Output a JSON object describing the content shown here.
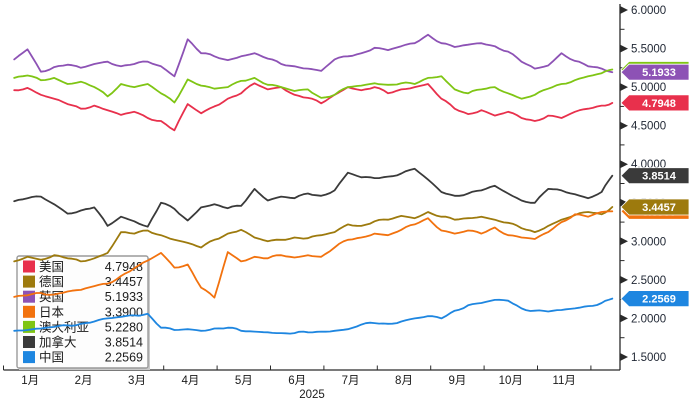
{
  "chart": {
    "year_label": "2025",
    "background": "#ffffff",
    "axis_color": "#2a2a2a",
    "y_axis": {
      "side": "right",
      "min": 1.5,
      "max": 6.0,
      "major_step": 0.5,
      "minor_step": 0.25,
      "tick_labels": [
        "6.0000",
        "5.5000",
        "5.0000",
        "4.5000",
        "4.0000",
        "3.5000",
        "3.0000",
        "2.5000",
        "2.0000",
        "1.5000"
      ]
    },
    "x_axis": {
      "month_labels": [
        "1月",
        "2月",
        "3月",
        "4月",
        "5月",
        "6月",
        "7月",
        "8月",
        "9月",
        "10月",
        "11月"
      ]
    },
    "legend_position": "bottom-left"
  },
  "chart_data": {
    "type": "line",
    "title": "",
    "xlabel": "2025",
    "ylabel": "",
    "ylim": [
      1.5,
      6.0
    ],
    "grid": false,
    "year_label": "2025",
    "x_unit": "month-of-2025 (decimal)",
    "x": [
      1.2,
      1.45,
      1.7,
      1.95,
      2.2,
      2.45,
      2.7,
      2.95,
      3.2,
      3.45,
      3.7,
      3.95,
      4.2,
      4.45,
      4.7,
      4.95,
      5.2,
      5.45,
      5.7,
      5.95,
      6.2,
      6.45,
      6.7,
      6.95,
      7.2,
      7.45,
      7.7,
      7.95,
      8.2,
      8.45,
      8.7,
      8.95,
      9.2,
      9.45,
      9.7,
      9.95,
      10.2,
      10.45,
      10.7,
      10.95,
      11.2,
      11.45,
      11.7,
      11.95,
      12.2,
      12.4
    ],
    "badge_draw_order": [
      4,
      2,
      3,
      1,
      0,
      5,
      6
    ],
    "series": [
      {
        "id": "us",
        "name": "美国",
        "color": "#e8304c",
        "last_value": "4.7948",
        "values": [
          4.96,
          4.99,
          4.9,
          4.85,
          4.78,
          4.72,
          4.76,
          4.7,
          4.64,
          4.68,
          4.6,
          4.56,
          4.44,
          4.78,
          4.66,
          4.75,
          4.85,
          4.92,
          5.05,
          4.97,
          5.0,
          4.9,
          4.86,
          4.79,
          4.9,
          5.0,
          4.96,
          5.0,
          4.92,
          4.97,
          5.0,
          5.04,
          4.85,
          4.72,
          4.65,
          4.7,
          4.63,
          4.68,
          4.6,
          4.56,
          4.63,
          4.6,
          4.68,
          4.72,
          4.76,
          4.7948
        ]
      },
      {
        "id": "germany",
        "name": "德国",
        "color": "#9d7a0d",
        "last_value": "3.4457",
        "values": [
          2.74,
          2.8,
          2.76,
          2.82,
          2.78,
          2.74,
          2.78,
          2.85,
          3.12,
          3.1,
          3.14,
          3.08,
          3.02,
          2.98,
          2.92,
          3.02,
          3.1,
          3.15,
          3.05,
          3.0,
          3.02,
          3.05,
          3.04,
          3.08,
          3.12,
          3.22,
          3.2,
          3.26,
          3.28,
          3.33,
          3.3,
          3.38,
          3.32,
          3.28,
          3.3,
          3.32,
          3.28,
          3.24,
          3.17,
          3.12,
          3.2,
          3.28,
          3.34,
          3.38,
          3.35,
          3.4457
        ]
      },
      {
        "id": "uk",
        "name": "英国",
        "color": "#8d52b5",
        "last_value": "5.1933",
        "values": [
          5.36,
          5.49,
          5.2,
          5.26,
          5.29,
          5.25,
          5.3,
          5.33,
          5.27,
          5.3,
          5.33,
          5.27,
          5.14,
          5.62,
          5.44,
          5.4,
          5.35,
          5.4,
          5.44,
          5.37,
          5.3,
          5.27,
          5.24,
          5.21,
          5.36,
          5.4,
          5.44,
          5.51,
          5.48,
          5.53,
          5.57,
          5.68,
          5.57,
          5.52,
          5.55,
          5.57,
          5.53,
          5.46,
          5.33,
          5.24,
          5.28,
          5.44,
          5.34,
          5.27,
          5.24,
          5.1933
        ]
      },
      {
        "id": "japan",
        "name": "日本",
        "color": "#f2720e",
        "last_value": "3.3900",
        "values": [
          2.28,
          2.3,
          2.33,
          2.31,
          2.35,
          2.37,
          2.42,
          2.45,
          2.55,
          2.65,
          2.75,
          2.85,
          2.66,
          2.7,
          2.4,
          2.27,
          2.86,
          2.74,
          2.8,
          2.78,
          2.82,
          2.79,
          2.82,
          2.8,
          2.92,
          3.02,
          3.05,
          3.1,
          3.08,
          3.15,
          3.22,
          3.3,
          3.14,
          3.1,
          3.14,
          3.1,
          3.18,
          3.08,
          3.05,
          3.03,
          3.12,
          3.25,
          3.35,
          3.32,
          3.38,
          3.39
        ]
      },
      {
        "id": "australia",
        "name": "澳大利亚",
        "color": "#7fc514",
        "last_value": "5.2280",
        "values": [
          5.12,
          5.15,
          5.09,
          5.12,
          5.04,
          5.07,
          5.0,
          4.88,
          5.04,
          5.0,
          5.04,
          4.92,
          4.8,
          5.1,
          5.02,
          4.98,
          5.0,
          5.08,
          5.12,
          5.03,
          5.0,
          4.95,
          4.97,
          4.86,
          4.9,
          5.0,
          5.02,
          5.05,
          5.03,
          5.05,
          5.04,
          5.12,
          5.14,
          4.97,
          4.92,
          4.97,
          5.0,
          4.92,
          4.85,
          4.9,
          4.98,
          5.04,
          5.09,
          5.14,
          5.18,
          5.228
        ]
      },
      {
        "id": "canada",
        "name": "加拿大",
        "color": "#3a3a3a",
        "last_value": "3.8514",
        "values": [
          3.52,
          3.56,
          3.58,
          3.48,
          3.36,
          3.4,
          3.44,
          3.2,
          3.32,
          3.26,
          3.19,
          3.5,
          3.42,
          3.27,
          3.44,
          3.48,
          3.43,
          3.46,
          3.68,
          3.53,
          3.58,
          3.56,
          3.62,
          3.59,
          3.66,
          3.89,
          3.83,
          3.82,
          3.84,
          3.88,
          3.94,
          3.8,
          3.64,
          3.59,
          3.62,
          3.66,
          3.72,
          3.62,
          3.53,
          3.5,
          3.68,
          3.66,
          3.61,
          3.56,
          3.64,
          3.8514
        ]
      },
      {
        "id": "china",
        "name": "中国",
        "color": "#1e86e0",
        "last_value": "2.2569",
        "values": [
          1.84,
          1.85,
          1.87,
          1.89,
          1.91,
          1.93,
          1.96,
          2.0,
          2.02,
          2.04,
          2.06,
          1.88,
          1.85,
          1.86,
          1.84,
          1.87,
          1.88,
          1.84,
          1.83,
          1.82,
          1.81,
          1.81,
          1.82,
          1.83,
          1.84,
          1.86,
          1.92,
          1.94,
          1.93,
          1.96,
          2.0,
          2.03,
          2.0,
          2.1,
          2.17,
          2.2,
          2.24,
          2.23,
          2.13,
          2.1,
          2.09,
          2.11,
          2.13,
          2.16,
          2.2,
          2.2569
        ]
      }
    ]
  }
}
